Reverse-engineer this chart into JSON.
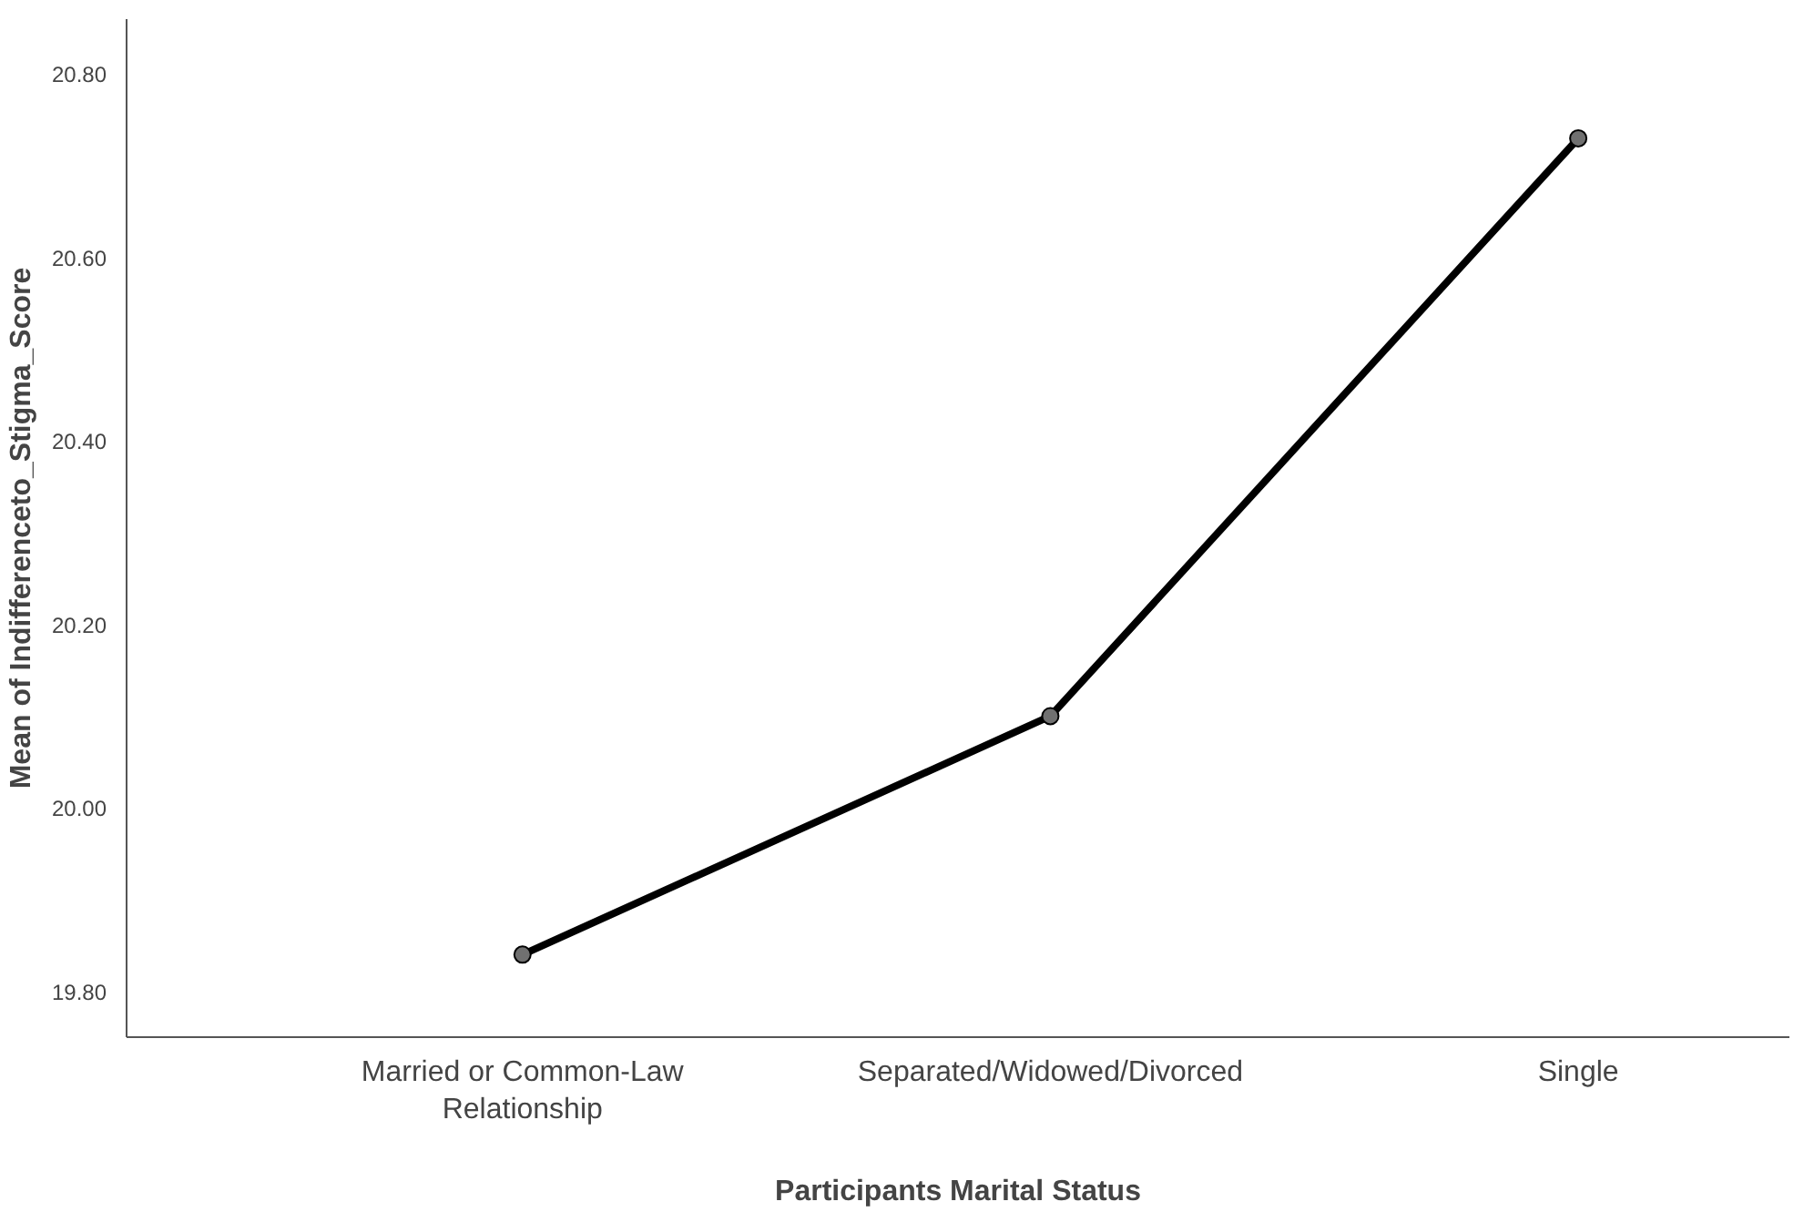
{
  "chart_data": {
    "type": "line",
    "xlabel": "Participants Marital Status",
    "ylabel": "Mean of Indifferenceto_Stigma_Score",
    "categories": [
      "Married or Common-Law\nRelationship",
      "Separated/Widowed/Divorced",
      "Single"
    ],
    "series": [
      {
        "color": "#000000",
        "values": [
          19.84,
          20.1,
          20.73
        ]
      }
    ],
    "ylim": [
      19.75,
      20.86
    ],
    "yticks": [
      {
        "value": 19.8,
        "label": "19.80"
      },
      {
        "value": 20.0,
        "label": "20.00"
      },
      {
        "value": 20.2,
        "label": "20.20"
      },
      {
        "value": 20.4,
        "label": "20.40"
      },
      {
        "value": 20.6,
        "label": "20.60"
      },
      {
        "value": 20.8,
        "label": "20.80"
      }
    ],
    "grid": false,
    "marker": "circle",
    "line_style": "solid"
  }
}
